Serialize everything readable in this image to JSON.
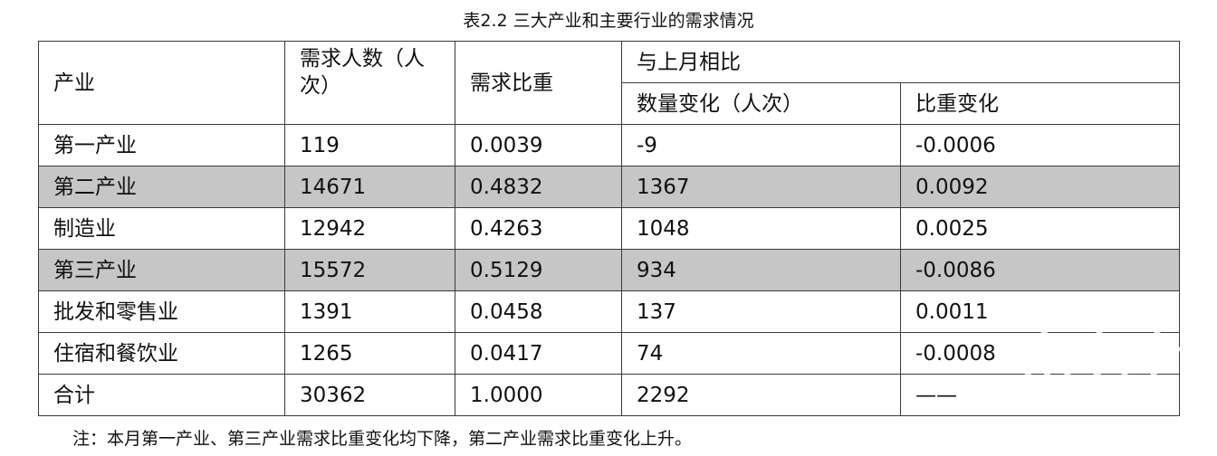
{
  "title": "表2.2 三大产业和主要行业的需求情况",
  "headers": {
    "industry": "产业",
    "demand_count": "需求人数（人次）",
    "demand_share": "需求比重",
    "compare_group": "与上月相比",
    "count_change": "数量变化（人次）",
    "share_change": "比重变化"
  },
  "rows": [
    {
      "name": "第一产业",
      "count": "119",
      "share": "0.0039",
      "count_change": "-9",
      "share_change": "-0.0006",
      "shaded": false
    },
    {
      "name": "第二产业",
      "count": "14671",
      "share": "0.4832",
      "count_change": "1367",
      "share_change": "0.0092",
      "shaded": true
    },
    {
      "name": "制造业",
      "count": "12942",
      "share": "0.4263",
      "count_change": "1048",
      "share_change": "0.0025",
      "shaded": false
    },
    {
      "name": "第三产业",
      "count": "15572",
      "share": "0.5129",
      "count_change": "934",
      "share_change": "-0.0086",
      "shaded": true
    },
    {
      "name": "批发和零售业",
      "count": "1391",
      "share": "0.0458",
      "count_change": "137",
      "share_change": "0.0011",
      "shaded": false
    },
    {
      "name": "住宿和餐饮业",
      "count": "1265",
      "share": "0.0417",
      "count_change": "74",
      "share_change": "-0.0008",
      "shaded": false
    },
    {
      "name": "合计",
      "count": "30362",
      "share": "1.0000",
      "count_change": "2292",
      "share_change": "——",
      "shaded": false
    }
  ],
  "note": "注：本月第一产业、第三产业需求比重变化均下降，第二产业需求比重变化上升。",
  "watermark": {
    "text": "南方+",
    "color": "#ffffff"
  }
}
